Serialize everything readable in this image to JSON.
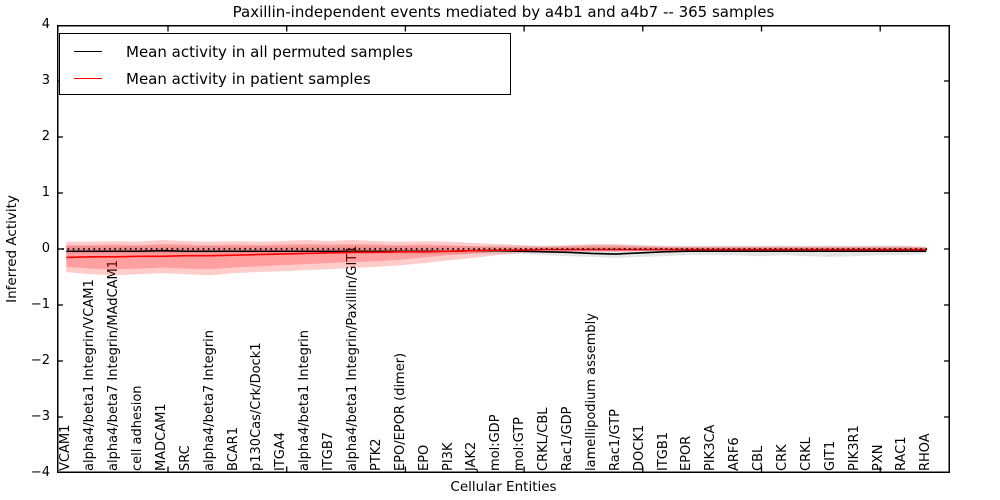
{
  "chart": {
    "title": "Paxillin-independent events mediated by a4b1 and a4b7 -- 365 samples",
    "xlabel": "Cellular Entities",
    "ylabel": "Inferred Activity",
    "legend": {
      "items": [
        {
          "label": "Mean activity in all permuted samples",
          "color": "#000000"
        },
        {
          "label": "Mean activity in patient samples",
          "color": "#ff0000"
        }
      ]
    }
  },
  "chart_data": {
    "type": "line",
    "title": "Paxillin-independent events mediated by a4b1 and a4b7 -- 365 samples",
    "xlabel": "Cellular Entities",
    "ylabel": "Inferred Activity",
    "ylim": [
      -4,
      4
    ],
    "grid": false,
    "legend_position": "upper left",
    "zero_reference_line": 0,
    "yticks": [
      {
        "label": "4",
        "value": 4
      },
      {
        "label": "3",
        "value": 3
      },
      {
        "label": "2",
        "value": 2
      },
      {
        "label": "1",
        "value": 1
      },
      {
        "label": "0",
        "value": 0
      },
      {
        "label": "−1",
        "value": -1
      },
      {
        "label": "−2",
        "value": -2
      },
      {
        "label": "−3",
        "value": -3
      },
      {
        "label": "−4",
        "value": -4
      }
    ],
    "categories": [
      "VCAM1",
      "alpha4/beta1 Integrin/VCAM1",
      "alpha4/beta7 Integrin/MAdCAM1",
      "cell adhesion",
      "MADCAM1",
      "SRC",
      "alpha4/beta7 Integrin",
      "BCAR1",
      "p130Cas/Crk/Dock1",
      "ITGA4",
      "alpha4/beta1 Integrin",
      "ITGB7",
      "alpha4/beta1 Integrin/Paxillin/GIT1",
      "PTK2",
      "EPO/EPOR (dimer)",
      "EPO",
      "PI3K",
      "JAK2",
      "mol:GDP",
      "mol:GTP",
      "CRKL/CBL",
      "Rac1/GDP",
      "lamellipodium assembly",
      "Rac1/GTP",
      "DOCK1",
      "ITGB1",
      "EPOR",
      "PIK3CA",
      "ARF6",
      "CBL",
      "CRK",
      "CRKL",
      "GIT1",
      "PIK3R1",
      "PXN",
      "RAC1",
      "RHOA"
    ],
    "series": [
      {
        "name": "Mean activity in all permuted samples",
        "color": "#000000",
        "values": [
          -0.04,
          -0.04,
          -0.04,
          -0.04,
          -0.03,
          -0.04,
          -0.04,
          -0.04,
          -0.04,
          -0.04,
          -0.04,
          -0.04,
          -0.04,
          -0.04,
          -0.04,
          -0.04,
          -0.04,
          -0.03,
          -0.03,
          -0.04,
          -0.05,
          -0.06,
          -0.08,
          -0.09,
          -0.07,
          -0.05,
          -0.04,
          -0.04,
          -0.04,
          -0.04,
          -0.04,
          -0.04,
          -0.04,
          -0.04,
          -0.04,
          -0.04,
          -0.04
        ]
      },
      {
        "name": "Mean activity in patient samples",
        "color": "#ff0000",
        "values": [
          -0.15,
          -0.14,
          -0.14,
          -0.13,
          -0.13,
          -0.12,
          -0.12,
          -0.11,
          -0.1,
          -0.09,
          -0.08,
          -0.07,
          -0.06,
          -0.06,
          -0.05,
          -0.05,
          -0.04,
          -0.03,
          -0.02,
          -0.02,
          -0.01,
          -0.01,
          -0.01,
          -0.01,
          -0.01,
          -0.01,
          -0.01,
          -0.01,
          -0.01,
          -0.01,
          -0.01,
          -0.01,
          -0.01,
          -0.01,
          -0.01,
          -0.01,
          -0.01
        ]
      }
    ],
    "bands": [
      {
        "name": "permuted-samples-band",
        "color": "rgba(0,0,0,0.10)",
        "upper": [
          0.05,
          0.05,
          0.05,
          0.05,
          0.05,
          0.05,
          0.05,
          0.05,
          0.05,
          0.05,
          0.05,
          0.05,
          0.05,
          0.05,
          0.05,
          0.05,
          0.05,
          0.05,
          0.06,
          0.06,
          0.06,
          0.06,
          0.07,
          0.07,
          0.06,
          0.06,
          0.05,
          0.05,
          0.06,
          0.05,
          0.06,
          0.05,
          0.06,
          0.05,
          0.06,
          0.06,
          0.04
        ],
        "lower": [
          -0.08,
          -0.08,
          -0.08,
          -0.08,
          -0.08,
          -0.08,
          -0.08,
          -0.08,
          -0.08,
          -0.08,
          -0.08,
          -0.08,
          -0.08,
          -0.08,
          -0.08,
          -0.09,
          -0.09,
          -0.09,
          -0.09,
          -0.09,
          -0.11,
          -0.13,
          -0.14,
          -0.16,
          -0.14,
          -0.13,
          -0.11,
          -0.11,
          -0.11,
          -0.13,
          -0.11,
          -0.13,
          -0.14,
          -0.13,
          -0.11,
          -0.11,
          -0.09
        ]
      },
      {
        "name": "patient-samples-band-outer",
        "color": "rgba(255,0,0,0.20)",
        "upper": [
          0.13,
          0.13,
          0.14,
          0.13,
          0.16,
          0.14,
          0.13,
          0.14,
          0.13,
          0.14,
          0.16,
          0.14,
          0.16,
          0.14,
          0.13,
          0.14,
          0.13,
          0.11,
          0.09,
          0.07,
          0.05,
          0.07,
          0.09,
          0.09,
          0.07,
          0.05,
          0.05,
          0.05,
          0.05,
          0.05,
          0.05,
          0.05,
          0.05,
          0.05,
          0.05,
          0.05,
          0.04
        ],
        "lower": [
          -0.41,
          -0.45,
          -0.47,
          -0.45,
          -0.43,
          -0.45,
          -0.47,
          -0.43,
          -0.41,
          -0.4,
          -0.38,
          -0.36,
          -0.34,
          -0.32,
          -0.29,
          -0.25,
          -0.2,
          -0.16,
          -0.11,
          -0.07,
          -0.05,
          -0.05,
          -0.05,
          -0.05,
          -0.04,
          -0.04,
          -0.04,
          -0.04,
          -0.04,
          -0.04,
          -0.04,
          -0.04,
          -0.04,
          -0.04,
          -0.04,
          -0.04,
          -0.04
        ]
      },
      {
        "name": "patient-samples-band-inner",
        "color": "rgba(255,0,0,0.22)",
        "upper": [
          0.07,
          0.07,
          0.08,
          0.07,
          0.09,
          0.08,
          0.07,
          0.08,
          0.07,
          0.08,
          0.09,
          0.08,
          0.09,
          0.08,
          0.07,
          0.08,
          0.07,
          0.05,
          0.04,
          0.03,
          0.03,
          0.04,
          0.05,
          0.05,
          0.04,
          0.03,
          0.03,
          0.03,
          0.03,
          0.03,
          0.03,
          0.03,
          0.03,
          0.03,
          0.03,
          0.03,
          0.02
        ],
        "lower": [
          -0.32,
          -0.35,
          -0.36,
          -0.35,
          -0.33,
          -0.35,
          -0.36,
          -0.33,
          -0.31,
          -0.29,
          -0.27,
          -0.25,
          -0.23,
          -0.22,
          -0.19,
          -0.15,
          -0.11,
          -0.08,
          -0.05,
          -0.04,
          -0.03,
          -0.03,
          -0.03,
          -0.03,
          -0.03,
          -0.03,
          -0.03,
          -0.03,
          -0.03,
          -0.03,
          -0.03,
          -0.03,
          -0.03,
          -0.03,
          -0.03,
          -0.03,
          -0.03
        ]
      }
    ]
  }
}
